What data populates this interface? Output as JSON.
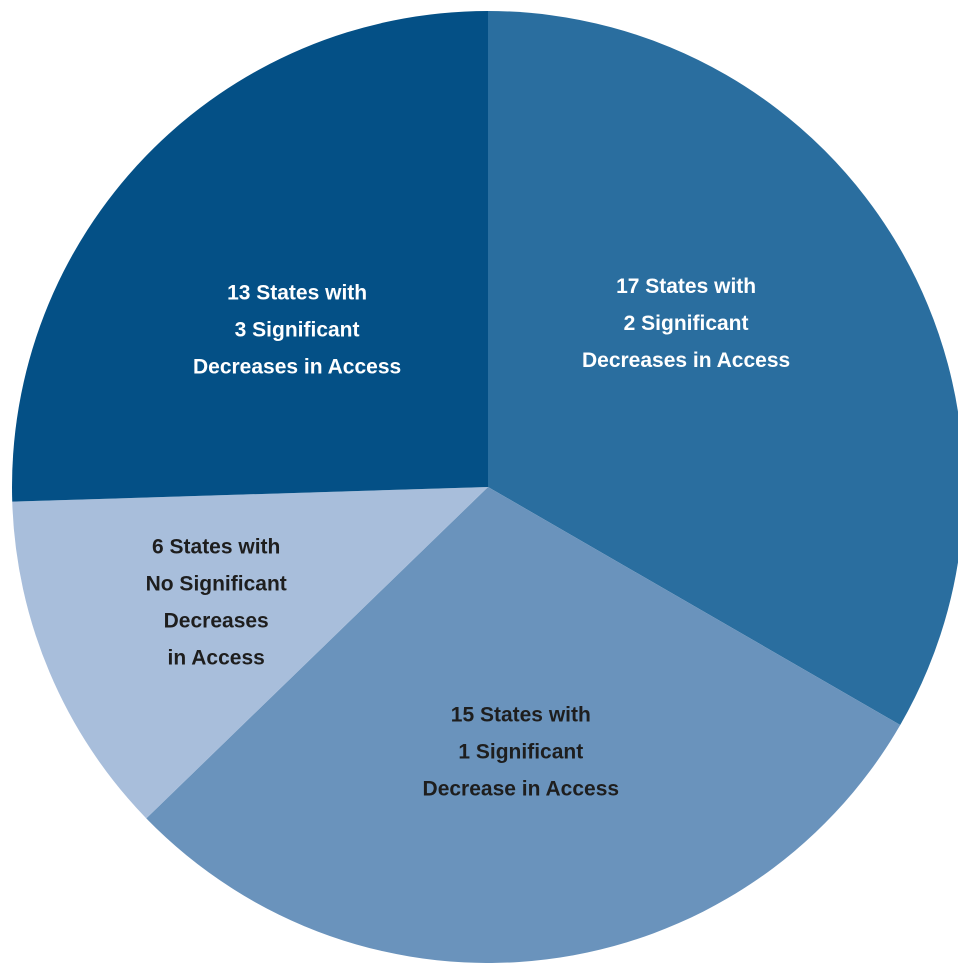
{
  "chart_data": {
    "type": "pie",
    "title": "",
    "start_angle_deg": 0,
    "direction": "clockwise",
    "slices": [
      {
        "value": 17,
        "label_lines": [
          "17 States with",
          "2 Significant",
          "Decreases in Access"
        ],
        "color": "#2a6e9f",
        "label_color": "#ffffff"
      },
      {
        "value": 15,
        "label_lines": [
          "15 States with",
          "1 Significant",
          "Decrease in Access"
        ],
        "color": "#6a93bc",
        "label_color": "#1e1e1e"
      },
      {
        "value": 6,
        "label_lines": [
          "6 States with",
          "No Significant",
          "Decreases",
          "in Access"
        ],
        "color": "#a8bedb",
        "label_color": "#1e1e1e"
      },
      {
        "value": 13,
        "label_lines": [
          "13 States with",
          "3 Significant",
          "Decreases in Access"
        ],
        "color": "#045086",
        "label_color": "#ffffff"
      }
    ]
  }
}
